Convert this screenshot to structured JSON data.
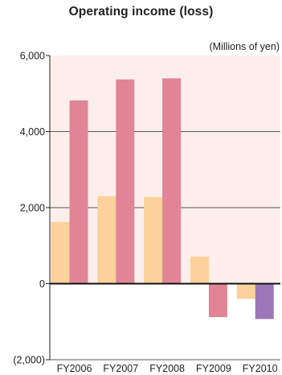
{
  "chart_data": {
    "type": "bar",
    "title": "Operating income (loss)",
    "unit_label": "(Millions of yen)",
    "categories": [
      "FY2006",
      "FY2007",
      "FY2008",
      "FY2009",
      "FY2010"
    ],
    "series": [
      {
        "values": [
          1620,
          2300,
          2280,
          710,
          -400
        ]
      },
      {
        "values": [
          4820,
          5370,
          5400,
          -880,
          -930
        ]
      }
    ],
    "series_colors": [
      [
        "#fad29a",
        "#fad29a",
        "#fad29a",
        "#fad29a",
        "#fad29a"
      ],
      [
        "#e08496",
        "#e08496",
        "#e08496",
        "#e08496",
        "#9c76b6"
      ]
    ],
    "y_ticks": [
      6000,
      4000,
      2000,
      0,
      -2000
    ],
    "y_tick_labels": [
      "6,000",
      "4,000",
      "2,000",
      "0",
      "(2,000)"
    ],
    "ylim": [
      -2000,
      6000
    ],
    "grid": true,
    "plot_bg_positive": "#fceeeb",
    "plot_bg_negative": "#ffffff",
    "grid_color": "#222222"
  }
}
